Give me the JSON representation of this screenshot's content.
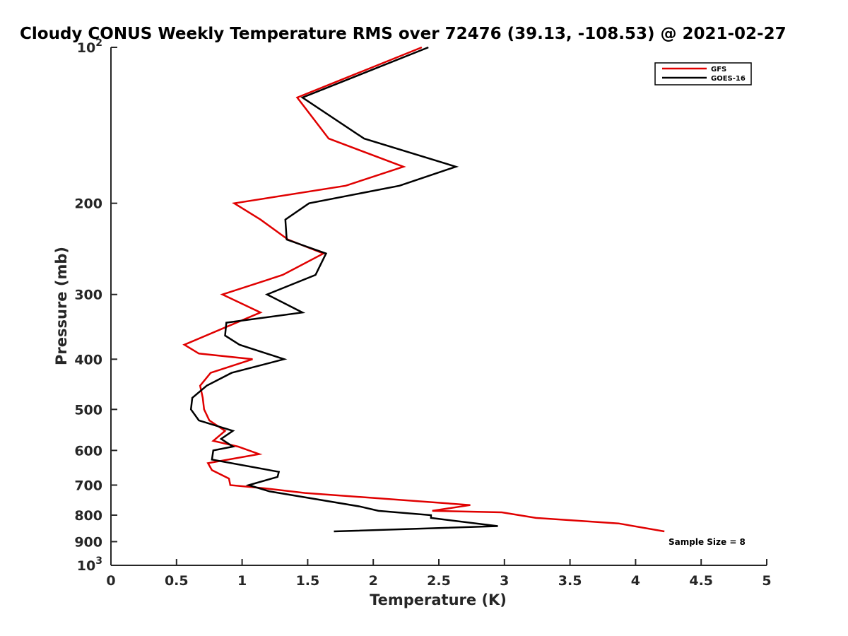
{
  "chart_data": {
    "type": "line",
    "title": "Cloudy CONUS Weekly Temperature RMS over 72476 (39.13, -108.53) @ 2021-02-27",
    "xlabel": "Temperature (K)",
    "ylabel": "Pressure (mb)",
    "xlim": [
      0,
      5
    ],
    "ylim": [
      100,
      1000
    ],
    "y_scale": "log",
    "y_direction": "reversed",
    "x_ticks": [
      "0",
      "0.5",
      "1",
      "1.5",
      "2",
      "2.5",
      "3",
      "3.5",
      "4",
      "4.5",
      "5"
    ],
    "x_tick_values": [
      0,
      0.5,
      1,
      1.5,
      2,
      2.5,
      3,
      3.5,
      4,
      4.5,
      5
    ],
    "y_ticks": [
      {
        "value": 100,
        "base": "10",
        "exp": "2"
      },
      {
        "value": 200,
        "label": "200"
      },
      {
        "value": 300,
        "label": "300"
      },
      {
        "value": 400,
        "label": "400"
      },
      {
        "value": 500,
        "label": "500"
      },
      {
        "value": 600,
        "label": "600"
      },
      {
        "value": 700,
        "label": "700"
      },
      {
        "value": 800,
        "label": "800"
      },
      {
        "value": 900,
        "label": "900"
      },
      {
        "value": 1000,
        "base": "10",
        "exp": "3"
      }
    ],
    "grid": false,
    "legend_position": "top-right",
    "series": [
      {
        "name": "GFS",
        "color": "#e00000",
        "points": [
          [
            2.37,
            100
          ],
          [
            1.42,
            125
          ],
          [
            1.66,
            150
          ],
          [
            2.23,
            170
          ],
          [
            1.79,
            185
          ],
          [
            0.94,
            200
          ],
          [
            1.14,
            215
          ],
          [
            1.35,
            235
          ],
          [
            1.62,
            250
          ],
          [
            1.31,
            275
          ],
          [
            0.85,
            300
          ],
          [
            1.14,
            325
          ],
          [
            0.56,
            375
          ],
          [
            0.67,
            390
          ],
          [
            1.08,
            400
          ],
          [
            0.76,
            425
          ],
          [
            0.68,
            450
          ],
          [
            0.7,
            475
          ],
          [
            0.71,
            500
          ],
          [
            0.75,
            525
          ],
          [
            0.87,
            550
          ],
          [
            0.78,
            575
          ],
          [
            0.97,
            590
          ],
          [
            1.13,
            610
          ],
          [
            0.74,
            635
          ],
          [
            0.77,
            655
          ],
          [
            0.9,
            680
          ],
          [
            0.91,
            700
          ],
          [
            1.17,
            710
          ],
          [
            1.48,
            725
          ],
          [
            2.74,
            765
          ],
          [
            2.45,
            785
          ],
          [
            2.98,
            790
          ],
          [
            3.24,
            810
          ],
          [
            3.87,
            830
          ],
          [
            4.22,
            860
          ]
        ]
      },
      {
        "name": "GOES-16",
        "color": "#000000",
        "points": [
          [
            2.42,
            100
          ],
          [
            1.46,
            125
          ],
          [
            1.93,
            150
          ],
          [
            2.63,
            170
          ],
          [
            2.2,
            185
          ],
          [
            1.51,
            200
          ],
          [
            1.33,
            215
          ],
          [
            1.34,
            235
          ],
          [
            1.64,
            250
          ],
          [
            1.56,
            275
          ],
          [
            1.19,
            300
          ],
          [
            1.46,
            325
          ],
          [
            0.88,
            340
          ],
          [
            0.87,
            360
          ],
          [
            0.98,
            375
          ],
          [
            1.32,
            400
          ],
          [
            0.92,
            425
          ],
          [
            0.73,
            450
          ],
          [
            0.62,
            475
          ],
          [
            0.61,
            500
          ],
          [
            0.67,
            525
          ],
          [
            0.93,
            550
          ],
          [
            0.84,
            570
          ],
          [
            0.93,
            590
          ],
          [
            0.78,
            600
          ],
          [
            0.77,
            625
          ],
          [
            1.28,
            660
          ],
          [
            1.27,
            675
          ],
          [
            1.05,
            700
          ],
          [
            1.21,
            720
          ],
          [
            1.9,
            770
          ],
          [
            2.04,
            785
          ],
          [
            2.44,
            800
          ],
          [
            2.44,
            810
          ],
          [
            2.95,
            840
          ],
          [
            1.7,
            860
          ]
        ]
      }
    ],
    "annotations": [
      "Sample Size = 8"
    ]
  }
}
